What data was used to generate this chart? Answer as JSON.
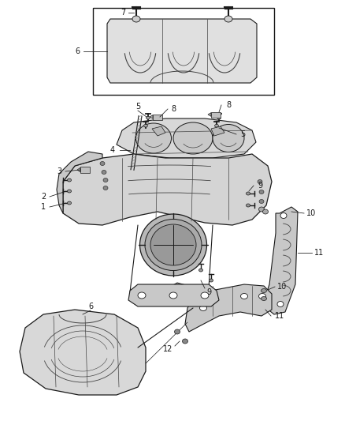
{
  "bg_color": "#ffffff",
  "dc": "#1a1a1a",
  "lc": "#444444",
  "gray1": "#d0d0d0",
  "gray2": "#b8b8b8",
  "gray3": "#c8c8c8",
  "font_size": 7.0,
  "fig_w": 4.38,
  "fig_h": 5.33,
  "dpi": 100
}
